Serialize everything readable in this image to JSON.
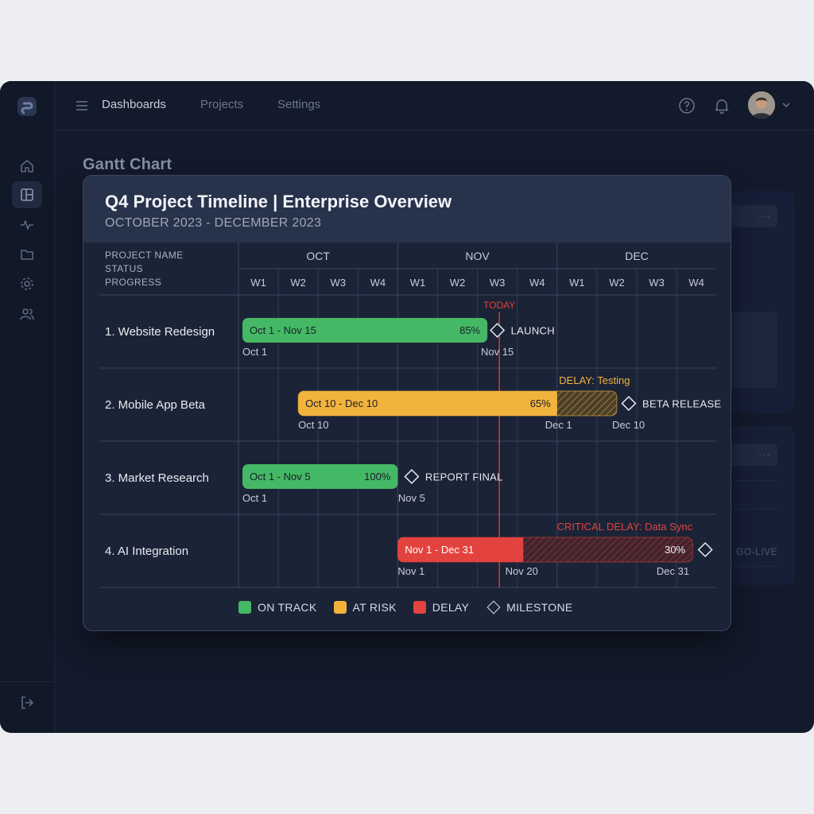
{
  "nav": {
    "items": [
      {
        "label": "Dashboards"
      },
      {
        "label": "Projects"
      },
      {
        "label": "Settings"
      }
    ]
  },
  "page": {
    "title": "Gantt Chart"
  },
  "background_cards": {
    "dots": "···",
    "go_live": "GO-LIVE"
  },
  "modal": {
    "title": "Q4 Project Timeline | Enterprise Overview",
    "subtitle": "OCTOBER 2023 - DECEMBER 2023"
  },
  "chart_data": {
    "type": "gantt",
    "header_labels": [
      "PROJECT NAME",
      "STATUS",
      "PROGRESS"
    ],
    "months": [
      "OCT",
      "NOV",
      "DEC"
    ],
    "weeks": [
      "W1",
      "W2",
      "W3",
      "W4",
      "W1",
      "W2",
      "W3",
      "W4",
      "W1",
      "W2",
      "W3",
      "W4"
    ],
    "today": {
      "label": "TODAY",
      "week_position": 6.55
    },
    "colors": {
      "on_track": "#44b865",
      "at_risk": "#f2b33d",
      "delay": "#e3433f",
      "grid": "#3a4560"
    },
    "tasks": [
      {
        "name": "1. Website Redesign",
        "status": "on_track",
        "bar_label": "Oct 1 - Nov 15",
        "progress": "85%",
        "start_week": 0.1,
        "end_week": 6.25,
        "start_date": "Oct 1",
        "milestone": {
          "label": "LAUNCH",
          "date": "Nov 15",
          "week": 6.5
        }
      },
      {
        "name": "2. Mobile App Beta",
        "status": "at_risk",
        "bar_label": "Oct 10 - Dec 10",
        "progress": "65%",
        "start_week": 1.5,
        "end_week": 8.0,
        "delay_end_week": 9.5,
        "start_date": "Oct 10",
        "delay_label": "DELAY: Testing",
        "delay_start_date": "Dec 1",
        "milestone": {
          "label": "BETA RELEASE",
          "date": "Dec 10",
          "week": 9.8
        }
      },
      {
        "name": "3. Market Research",
        "status": "on_track",
        "bar_label": "Oct 1 - Nov 5",
        "progress": "100%",
        "start_week": 0.1,
        "end_week": 4.0,
        "start_date": "Oct 1",
        "milestone": {
          "label": "REPORT FINAL",
          "date": "Nov 5",
          "week": 4.35
        }
      },
      {
        "name": "4. AI Integration",
        "status": "delay",
        "bar_label": "Nov 1 - Dec 31",
        "progress": "30%",
        "start_week": 4.0,
        "end_week": 7.15,
        "delay_end_week": 11.4,
        "start_date": "Nov 1",
        "delay_label": "CRITICAL DELAY: Data Sync",
        "delay_start_date": "Nov 20",
        "end_date": "Dec 31",
        "milestone": {
          "label": "",
          "week": 11.72
        }
      }
    ],
    "legend": [
      {
        "label": "ON TRACK",
        "color": "#44b865"
      },
      {
        "label": "AT RISK",
        "color": "#f2b33d"
      },
      {
        "label": "DELAY",
        "color": "#e3433f"
      },
      {
        "label": "MILESTONE",
        "shape": "diamond"
      }
    ]
  }
}
